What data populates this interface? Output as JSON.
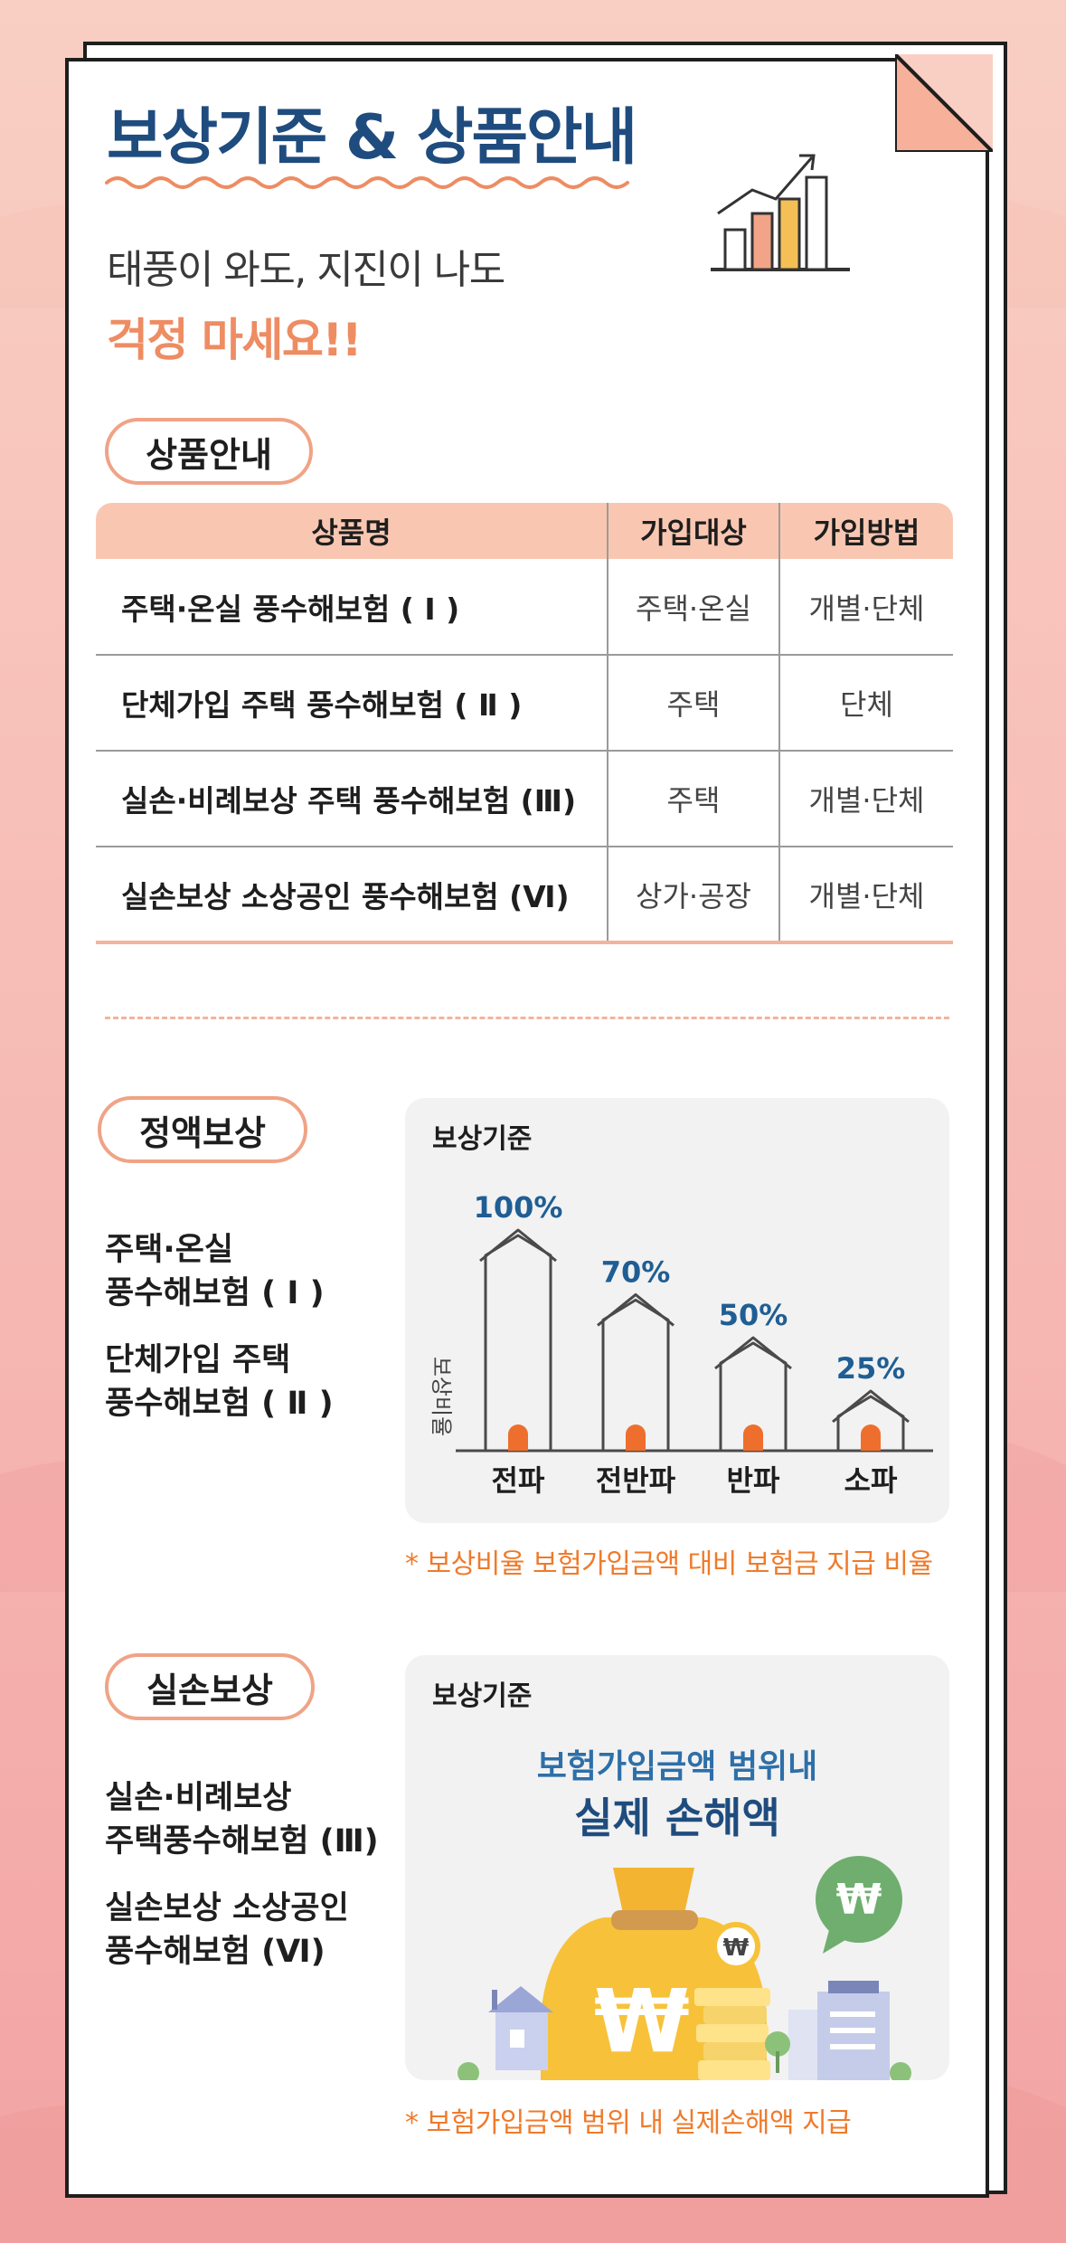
{
  "header": {
    "title": "보상기준 & 상품안내",
    "subtitle": "태풍이 와도, 지진이 나도",
    "subtitle_highlight": "걱정 마세요!!"
  },
  "products": {
    "section_label": "상품안내",
    "columns": [
      "상품명",
      "가입대상",
      "가입방법"
    ],
    "rows": [
      [
        "주택·온실 풍수해보험 ( Ⅰ )",
        "주택·온실",
        "개별·단체"
      ],
      [
        "단체가입 주택 풍수해보험 ( Ⅱ )",
        "주택",
        "단체"
      ],
      [
        "실손·비례보상 주택 풍수해보험 (Ⅲ)",
        "주택",
        "개별·단체"
      ],
      [
        "실손보상 소상공인 풍수해보험 (Ⅵ)",
        "상가·공장",
        "개별·단체"
      ]
    ]
  },
  "fixed": {
    "section_label": "정액보상",
    "items": [
      [
        "주택·온실",
        "풍수해보험 ( Ⅰ )"
      ],
      [
        "단체가입 주택",
        "풍수해보험 ( Ⅱ )"
      ]
    ],
    "box_label": "보상기준",
    "note": "* 보상비율 보험가입금액 대비 보험금 지급 비율"
  },
  "chart_data": {
    "type": "bar",
    "ylabel": "보상비율",
    "categories": [
      "전파",
      "전반파",
      "반파",
      "소파"
    ],
    "values": [
      100,
      70,
      50,
      25
    ],
    "value_labels": [
      "100%",
      "70%",
      "50%",
      "25%"
    ],
    "ylim": [
      0,
      100
    ],
    "colors": {
      "value": "#1f5e94",
      "door": "#ee6f2d",
      "outline": "#4a4a4a"
    }
  },
  "actual": {
    "section_label": "실손보상",
    "items": [
      [
        "실손·비례보상",
        "주택풍수해보험 (Ⅲ)"
      ],
      [
        "실손보상 소상공인",
        "풍수해보험 (Ⅵ)"
      ]
    ],
    "box_label": "보상기준",
    "line1": "보험가입금액 범위내",
    "line2": "실제 손해액",
    "currency_symbol": "₩",
    "note": "* 보험가입금액 범위 내 실제손해액 지급"
  },
  "colors": {
    "title": "#1f4c7e",
    "accent": "#ee8c62",
    "pill_border": "#f0a386",
    "table_header": "#f9c7b1",
    "note": "#f07a2a"
  }
}
